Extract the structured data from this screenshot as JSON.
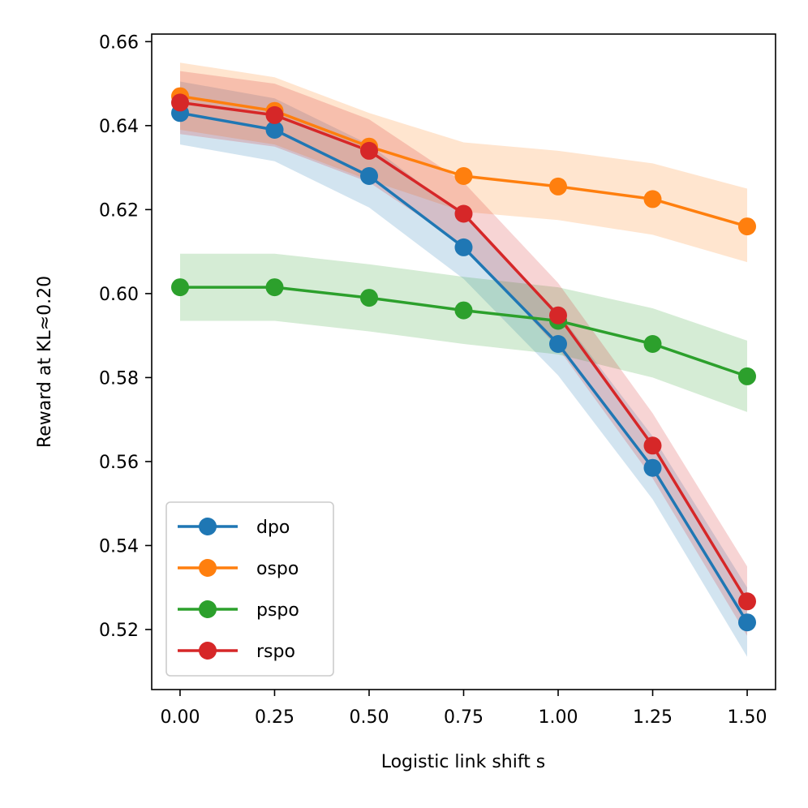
{
  "chart_data": {
    "type": "line",
    "title": "",
    "xlabel": "Logistic link shift s",
    "ylabel": "Reward at KL≈0.20",
    "x": [
      0.0,
      0.25,
      0.5,
      0.75,
      1.0,
      1.25,
      1.5
    ],
    "xlim": [
      -0.075,
      1.575
    ],
    "ylim": [
      0.5057,
      0.6618
    ],
    "xticks": [
      0.0,
      0.25,
      0.5,
      0.75,
      1.0,
      1.25,
      1.5
    ],
    "xtick_labels": [
      "0.00",
      "0.25",
      "0.50",
      "0.75",
      "1.00",
      "1.25",
      "1.50"
    ],
    "yticks": [
      0.52,
      0.54,
      0.56,
      0.58,
      0.6,
      0.62,
      0.64,
      0.66
    ],
    "ytick_labels": [
      "0.52",
      "0.54",
      "0.56",
      "0.58",
      "0.60",
      "0.62",
      "0.64",
      "0.66"
    ],
    "grid": false,
    "legend_position": "lower-left",
    "series": [
      {
        "name": "dpo",
        "color": "#1f77b4",
        "values": [
          0.643,
          0.639,
          0.628,
          0.611,
          0.588,
          0.5585,
          0.5217
        ],
        "lower": [
          0.6355,
          0.6315,
          0.6205,
          0.6035,
          0.5805,
          0.551,
          0.5135
        ],
        "upper": [
          0.6505,
          0.6465,
          0.6355,
          0.6185,
          0.5955,
          0.566,
          0.53
        ]
      },
      {
        "name": "ospo",
        "color": "#ff7f0e",
        "values": [
          0.647,
          0.6435,
          0.635,
          0.628,
          0.6255,
          0.6225,
          0.616
        ],
        "lower": [
          0.639,
          0.6355,
          0.627,
          0.6195,
          0.6175,
          0.614,
          0.6075
        ],
        "upper": [
          0.655,
          0.6515,
          0.643,
          0.636,
          0.634,
          0.631,
          0.625
        ]
      },
      {
        "name": "pspo",
        "color": "#2ca02c",
        "values": [
          0.6015,
          0.6015,
          0.599,
          0.596,
          0.5935,
          0.588,
          0.5803
        ],
        "lower": [
          0.5935,
          0.5935,
          0.591,
          0.588,
          0.5855,
          0.58,
          0.5718
        ],
        "upper": [
          0.6095,
          0.6095,
          0.607,
          0.604,
          0.6015,
          0.5965,
          0.5888
        ]
      },
      {
        "name": "rspo",
        "color": "#d62728",
        "values": [
          0.6455,
          0.6425,
          0.634,
          0.619,
          0.5948,
          0.5638,
          0.5267
        ],
        "lower": [
          0.638,
          0.635,
          0.6265,
          0.6115,
          0.587,
          0.556,
          0.5185
        ],
        "upper": [
          0.653,
          0.65,
          0.6415,
          0.6265,
          0.6025,
          0.5715,
          0.535
        ]
      }
    ]
  }
}
